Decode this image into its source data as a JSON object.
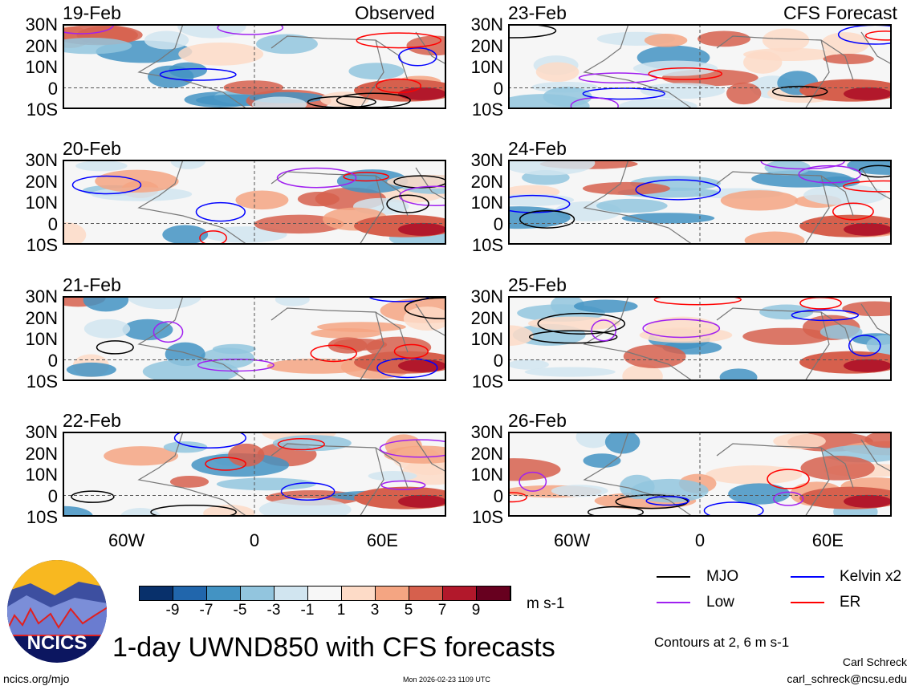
{
  "header": {
    "observed_label": "Observed",
    "forecast_label": "CFS Forecast"
  },
  "panels": {
    "observed": [
      "19-Feb",
      "20-Feb",
      "21-Feb",
      "22-Feb"
    ],
    "forecast": [
      "23-Feb",
      "24-Feb",
      "25-Feb",
      "26-Feb"
    ]
  },
  "axes": {
    "lat_labels": [
      "30N",
      "20N",
      "10N",
      "0",
      "10S"
    ],
    "lon_labels": [
      "60W",
      "0",
      "60E"
    ],
    "lat_range": [
      -10,
      30
    ],
    "lon_range": [
      -90,
      90
    ]
  },
  "colorbar": {
    "ticks": [
      "-9",
      "-7",
      "-5",
      "-3",
      "-1",
      "1",
      "3",
      "5",
      "7",
      "9"
    ],
    "colors": [
      "#08306b",
      "#2166ac",
      "#4393c3",
      "#92c5de",
      "#d1e5f0",
      "#f7f7f7",
      "#fddbc7",
      "#f4a582",
      "#d6604d",
      "#b2182b",
      "#67001f"
    ],
    "units": "m s-1"
  },
  "legend": {
    "items": [
      {
        "label": "MJO",
        "color": "#000000"
      },
      {
        "label": "Kelvin x2",
        "color": "#0000ff"
      },
      {
        "label": "Low",
        "color": "#a020f0"
      },
      {
        "label": "ER",
        "color": "#ff0000"
      }
    ],
    "contours_note": "Contours at 2, 6 m s-1"
  },
  "footer": {
    "title": "1-day UWND850 with CFS forecasts",
    "url": "ncics.org/mjo",
    "timestamp": "Mon 2026-02-23 1109 UTC",
    "author": "Carl Schreck",
    "email": "carl_schreck@ncsu.edu",
    "logo_text": "NCICS"
  }
}
